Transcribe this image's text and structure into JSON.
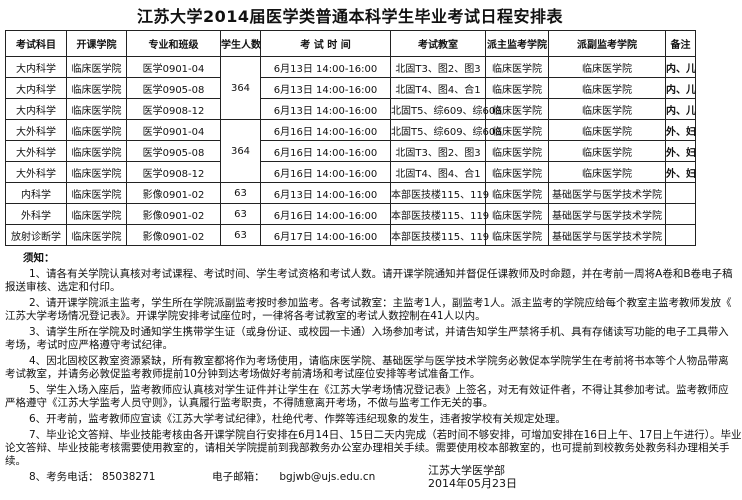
{
  "title": "江苏大学2014届医学类普通本科学生毕业考试日程安排表",
  "table": {
    "headers": [
      "考试科目",
      "开课学院",
      "专业和班级",
      "学生人数",
      "考 试 时 间",
      "考试教室",
      "派主监考学院",
      "派副监考学院",
      "备注"
    ],
    "rows": [
      {
        "subject": "大内科学",
        "college": "临床医学院",
        "class": "医学0901-04",
        "students": "364",
        "students_rowspan": 3,
        "time": "6月13日 14:00-16:00",
        "room": "北固T3、图2、图3",
        "main": "临床医学院",
        "vice": "临床医学院",
        "remark": "内、儿"
      },
      {
        "subject": "大内科学",
        "college": "临床医学院",
        "class": "医学0905-08",
        "time": "6月13日 14:00-16:00",
        "room": "北固T4、图4、合1",
        "main": "临床医学院",
        "vice": "临床医学院",
        "remark": "内、儿"
      },
      {
        "subject": "大内科学",
        "college": "临床医学院",
        "class": "医学0908-12",
        "time": "6月13日 14:00-16:00",
        "room": "北固T5、综609、综608",
        "main": "临床医学院",
        "vice": "临床医学院",
        "remark": "内、儿"
      },
      {
        "subject": "大外科学",
        "college": "临床医学院",
        "class": "医学0901-04",
        "students": "364",
        "students_rowspan": 3,
        "time": "6月16日 14:00-16:00",
        "room": "北固T5、综609、综608",
        "main": "临床医学院",
        "vice": "临床医学院",
        "remark": "外、妇"
      },
      {
        "subject": "大外科学",
        "college": "临床医学院",
        "class": "医学0905-08",
        "time": "6月16日 14:00-16:00",
        "room": "北固T3、图2、图3",
        "main": "临床医学院",
        "vice": "临床医学院",
        "remark": "外、妇"
      },
      {
        "subject": "大外科学",
        "college": "临床医学院",
        "class": "医学0908-12",
        "time": "6月16日 14:00-16:00",
        "room": "北固T4、图4、合1",
        "main": "临床医学院",
        "vice": "临床医学院",
        "remark": "外、妇"
      },
      {
        "subject": "内科学",
        "college": "临床医学院",
        "class": "影像0901-02",
        "students": "63",
        "students_rowspan": 1,
        "time": "6月13日 14:00-16:00",
        "room": "本部医技楼115、119",
        "main": "临床医学院",
        "vice": "基础医学与医学技术学院",
        "remark": ""
      },
      {
        "subject": "外科学",
        "college": "临床医学院",
        "class": "影像0901-02",
        "students": "63",
        "students_rowspan": 1,
        "time": "6月16日 14:00-16:00",
        "room": "本部医技楼115、119",
        "main": "临床医学院",
        "vice": "基础医学与医学技术学院",
        "remark": ""
      },
      {
        "subject": "放射诊断学",
        "college": "临床医学院",
        "class": "影像0901-02",
        "students": "63",
        "students_rowspan": 1,
        "time": "6月17日 14:00-16:00",
        "room": "本部医技楼115、119",
        "main": "临床医学院",
        "vice": "基础医学与医学技术学院",
        "remark": ""
      }
    ]
  },
  "notes": {
    "heading": "须知：",
    "items": [
      [
        "1、请各有关学院认真核对考试课程、考试时间、学生考试资格和考试人数。请开课学院通知并督促任课教师及时命题，并在考前一周将A卷和B卷电子稿",
        "报送审核、选定和付印。"
      ],
      [
        "2、请开课学院派主监考，学生所在学院派副监考按时参加监考。各考试教室：主监考1人，副监考1人。派主监考的学院应给每个教室主监考教师发放《",
        "江苏大学考场情况登记表》。开课学院安排考试座位时，一律将各考试教室的考试人数控制在41人以内。"
      ],
      [
        "3、请学生所在学院及时通知学生携带学生证（或身份证、或校园一卡通）入场参加考试，并请告知学生严禁将手机、具有存储读写功能的电子工具带入",
        "考场，考试时应严格遵守考试纪律。"
      ],
      [
        "4、因北固校区教室资源紧缺，所有教室都将作为考场使用，请临床医学院、基础医学与医学技术学院务必敦促本学院学生在考前将书本等个人物品带离",
        "考试教室，并请务必敦促监考教师提前10分钟到达考场做好考前清场和考试座位安排等考试准备工作。"
      ],
      [
        "5、学生入场入座后，监考教师应认真核对学生证件并让学生在《江苏大学考场情况登记表》上签名，对无有效证件者，不得让其参加考试。监考教师应",
        "严格遵守《江苏大学监考人员守则》，认真履行监考职责，不得随意离开考场，不做与监考工作无关的事。"
      ],
      [
        "6、开考前，监考教师应宣读《江苏大学考试纪律》，杜绝代考、作弊等违纪现象的发生，违者按学校有关规定处理。"
      ],
      [
        "7、毕业论文答辩、毕业技能考核由各开课学院自行安排在6月14日、15日二天内完成（若时间不够安排，可增加安排在16日上午、17日上午进行）。毕业",
        "论文答辩、毕业技能考核需要使用教室的，请相关学院提前到我部教务办公室办理相关手续。需要使用校本部教室的，也可提前到校教务处教务科办理相关手",
        "续。"
      ]
    ],
    "contact": {
      "phone_label": "8、考务电话：",
      "phone": "85038271",
      "email_label": "电子邮箱：",
      "email": "bgjwb@ujs.edu.cn"
    }
  },
  "signature": {
    "org": "江苏大学医学部",
    "date": "2014年05月23日"
  }
}
